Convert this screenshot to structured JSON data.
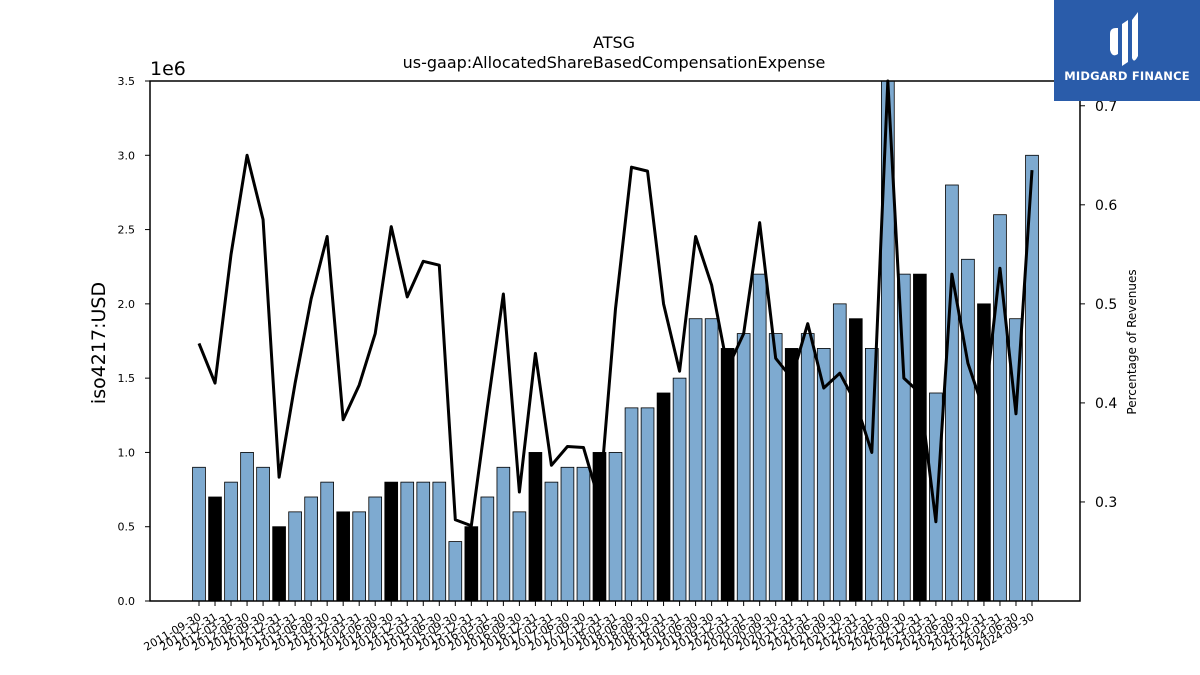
{
  "brand": {
    "name": "MIDGARD FINANCE",
    "colors": {
      "background": "#2a5caa",
      "text": "#ffffff"
    }
  },
  "chart_data": {
    "type": "bar",
    "title": "ATSG",
    "subtitle": "us-gaap:AllocatedShareBasedCompensationExpense",
    "ylabel": "iso4217:USD",
    "y_offset_label": "1e6",
    "y2label": "Percentage of Revenues",
    "ylim": [
      0,
      3500000
    ],
    "y2lim": [
      0.2,
      0.725
    ],
    "y_ticks": [
      0,
      500000,
      1000000,
      1500000,
      2000000,
      2500000,
      3000000,
      3500000
    ],
    "y_tick_labels": [
      "0.0",
      "0.5",
      "1.0",
      "1.5",
      "2.0",
      "2.5",
      "3.0",
      "3.5"
    ],
    "y2_ticks": [
      0.3,
      0.4,
      0.5,
      0.6,
      0.7
    ],
    "y2_tick_labels": [
      "0.3",
      "0.4",
      "0.5",
      "0.6",
      "0.7"
    ],
    "colors": {
      "bar": "#7eaad0",
      "bar_highlight": "#000000",
      "line": "#000000"
    },
    "categories": [
      "2011-09-30",
      "2011-12-31",
      "2012-03-31",
      "2012-06-30",
      "2012-09-30",
      "2012-12-31",
      "2013-03-31",
      "2013-06-30",
      "2013-09-30",
      "2013-12-31",
      "2014-03-31",
      "2014-06-30",
      "2014-09-30",
      "2014-12-31",
      "2015-03-31",
      "2015-06-30",
      "2015-09-30",
      "2015-12-31",
      "2016-03-31",
      "2016-06-30",
      "2016-09-30",
      "2016-12-31",
      "2017-03-31",
      "2017-06-30",
      "2017-09-30",
      "2017-12-31",
      "2018-03-31",
      "2018-06-30",
      "2018-09-30",
      "2018-12-31",
      "2019-03-31",
      "2019-06-30",
      "2019-09-30",
      "2019-12-31",
      "2020-03-31",
      "2020-06-30",
      "2020-09-30",
      "2020-12-31",
      "2021-03-31",
      "2021-06-30",
      "2021-09-30",
      "2021-12-31",
      "2022-03-31",
      "2022-06-30",
      "2022-09-30",
      "2022-12-31",
      "2023-03-31",
      "2023-06-30",
      "2023-09-30",
      "2023-12-31",
      "2024-03-31",
      "2024-06-30",
      "2024-09-30"
    ],
    "series": [
      {
        "type": "bar",
        "values": [
          900000,
          700000,
          800000,
          1000000,
          900000,
          500000,
          600000,
          700000,
          800000,
          600000,
          600000,
          700000,
          800000,
          800000,
          800000,
          800000,
          400000,
          500000,
          700000,
          900000,
          600000,
          1000000,
          800000,
          900000,
          900000,
          1000000,
          1000000,
          1300000,
          1300000,
          1400000,
          1500000,
          1900000,
          1900000,
          1700000,
          1800000,
          2200000,
          1800000,
          1700000,
          1800000,
          1700000,
          2000000,
          1900000,
          1700000,
          3500000,
          2200000,
          2200000,
          1400000,
          2800000,
          2300000,
          2000000,
          2600000,
          1900000,
          3000000
        ],
        "highlight": [
          false,
          true,
          false,
          false,
          false,
          true,
          false,
          false,
          false,
          true,
          false,
          false,
          true,
          false,
          false,
          false,
          false,
          true,
          false,
          false,
          false,
          true,
          false,
          false,
          false,
          true,
          false,
          false,
          false,
          true,
          false,
          false,
          false,
          true,
          false,
          false,
          false,
          true,
          false,
          false,
          false,
          true,
          false,
          false,
          false,
          true,
          false,
          false,
          false,
          true,
          false,
          false,
          false
        ]
      },
      {
        "type": "line",
        "axis": "right",
        "values": [
          0.46,
          0.42,
          0.55,
          0.65,
          0.585,
          0.325,
          0.42,
          0.505,
          0.568,
          0.383,
          0.418,
          0.47,
          0.578,
          0.507,
          0.543,
          0.539,
          0.282,
          0.276,
          0.395,
          0.51,
          0.31,
          0.45,
          0.337,
          0.356,
          0.355,
          0.3,
          0.495,
          0.638,
          0.634,
          0.5,
          0.432,
          0.568,
          0.519,
          0.435,
          0.47,
          0.582,
          0.445,
          0.425,
          0.48,
          0.415,
          0.43,
          0.4,
          0.35,
          0.73,
          0.425,
          0.41,
          0.28,
          0.53,
          0.44,
          0.392,
          0.536,
          0.389,
          0.635
        ]
      }
    ]
  }
}
